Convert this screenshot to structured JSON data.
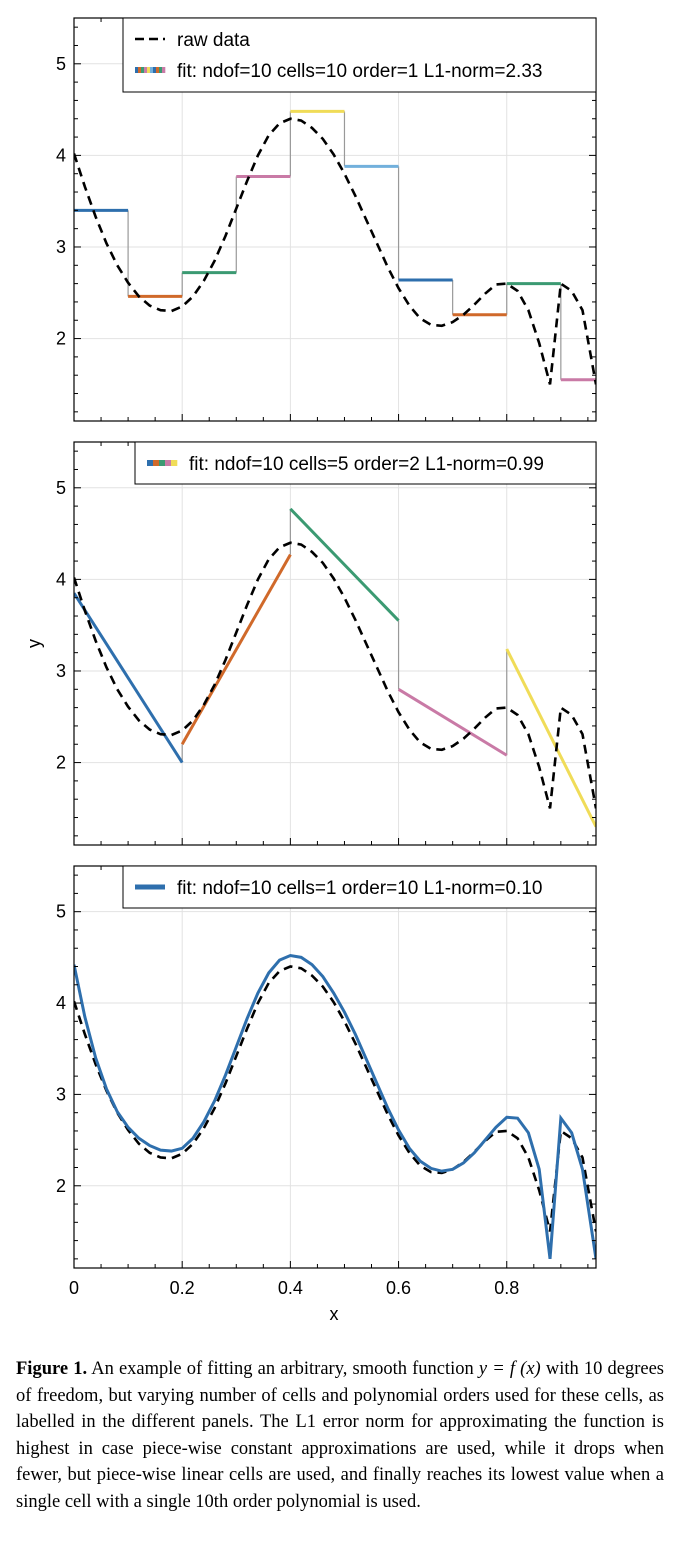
{
  "chart_data": [
    {
      "type": "line",
      "panel": "top",
      "xlim": [
        0,
        0.965
      ],
      "ylim": [
        1.1,
        5.5
      ],
      "yticks": [
        2,
        3,
        4,
        5
      ],
      "ytick_labels": [
        "2",
        "3",
        "4",
        "5"
      ],
      "xticks": [
        0.2,
        0.4,
        0.6,
        0.8
      ],
      "grid": true,
      "legend_position": "top-right",
      "legend": [
        "raw data",
        "fit: ndof=10 cells=10 order=1 L1-norm=2.33"
      ],
      "series": [
        {
          "name": "raw data",
          "style": "dashed",
          "color": "#000000",
          "x": [
            0,
            0.02,
            0.04,
            0.06,
            0.08,
            0.1,
            0.12,
            0.14,
            0.16,
            0.18,
            0.2,
            0.22,
            0.24,
            0.26,
            0.28,
            0.3,
            0.32,
            0.34,
            0.36,
            0.38,
            0.4,
            0.42,
            0.44,
            0.46,
            0.48,
            0.5,
            0.52,
            0.54,
            0.56,
            0.58,
            0.6,
            0.62,
            0.64,
            0.66,
            0.68,
            0.7,
            0.72,
            0.74,
            0.76,
            0.78,
            0.8,
            0.82,
            0.84,
            0.86,
            0.88,
            0.9,
            0.92,
            0.94,
            0.965
          ],
          "values": [
            4.02,
            3.66,
            3.33,
            3.04,
            2.8,
            2.61,
            2.46,
            2.36,
            2.31,
            2.3,
            2.35,
            2.46,
            2.63,
            2.85,
            3.12,
            3.42,
            3.72,
            4.0,
            4.22,
            4.35,
            4.4,
            4.38,
            4.3,
            4.18,
            4.01,
            3.8,
            3.56,
            3.3,
            3.04,
            2.78,
            2.55,
            2.36,
            2.22,
            2.15,
            2.14,
            2.18,
            2.26,
            2.37,
            2.49,
            2.59,
            2.6,
            2.52,
            2.31,
            1.95,
            1.5,
            2.6,
            2.52,
            2.31,
            1.5
          ]
        },
        {
          "name": "fit: ndof=10 cells=10 order=1 L1-norm=2.33",
          "kind": "piecewise-constant",
          "segments": [
            {
              "x": [
                0.0,
                0.1
              ],
              "y": 3.4,
              "color": "#2e6fad"
            },
            {
              "x": [
                0.1,
                0.2
              ],
              "y": 2.46,
              "color": "#d0692a"
            },
            {
              "x": [
                0.2,
                0.3
              ],
              "y": 2.72,
              "color": "#3b9a72"
            },
            {
              "x": [
                0.3,
                0.4
              ],
              "y": 3.77,
              "color": "#c97aa6"
            },
            {
              "x": [
                0.4,
                0.5
              ],
              "y": 4.48,
              "color": "#f0dc58"
            },
            {
              "x": [
                0.5,
                0.6
              ],
              "y": 3.88,
              "color": "#72b0dc"
            },
            {
              "x": [
                0.6,
                0.7
              ],
              "y": 2.64,
              "color": "#2e6fad"
            },
            {
              "x": [
                0.7,
                0.8
              ],
              "y": 2.26,
              "color": "#d0692a"
            },
            {
              "x": [
                0.8,
                0.9
              ],
              "y": 2.6,
              "color": "#3b9a72"
            },
            {
              "x": [
                0.9,
                0.965
              ],
              "y": 1.55,
              "color": "#c97aa6"
            }
          ]
        }
      ]
    },
    {
      "type": "line",
      "panel": "middle",
      "ylabel": "y",
      "xlim": [
        0,
        0.965
      ],
      "ylim": [
        1.1,
        5.5
      ],
      "yticks": [
        2,
        3,
        4,
        5
      ],
      "ytick_labels": [
        "2",
        "3",
        "4",
        "5"
      ],
      "xticks": [
        0.2,
        0.4,
        0.6,
        0.8
      ],
      "grid": true,
      "legend_position": "top-right",
      "legend": [
        "fit: ndof=10 cells=5 order=2 L1-norm=0.99"
      ],
      "series": [
        {
          "name": "raw data",
          "style": "dashed",
          "color": "#000000"
        },
        {
          "name": "fit: ndof=10 cells=5 order=2 L1-norm=0.99",
          "kind": "piecewise-linear",
          "segments": [
            {
              "x": [
                0.0,
                0.2
              ],
              "y": [
                3.85,
                2.0
              ],
              "color": "#2e6fad"
            },
            {
              "x": [
                0.2,
                0.4
              ],
              "y": [
                2.2,
                4.27
              ],
              "color": "#d0692a"
            },
            {
              "x": [
                0.4,
                0.6
              ],
              "y": [
                4.77,
                3.55
              ],
              "color": "#3b9a72"
            },
            {
              "x": [
                0.6,
                0.8
              ],
              "y": [
                2.8,
                2.08
              ],
              "color": "#c97aa6"
            },
            {
              "x": [
                0.8,
                0.965
              ],
              "y": [
                3.24,
                1.3
              ],
              "color": "#f0dc58"
            }
          ]
        }
      ]
    },
    {
      "type": "line",
      "panel": "bottom",
      "xlabel": "x",
      "xlim": [
        0,
        0.965
      ],
      "ylim": [
        1.1,
        5.5
      ],
      "yticks": [
        2,
        3,
        4,
        5
      ],
      "ytick_labels": [
        "2",
        "3",
        "4",
        "5"
      ],
      "xticks": [
        0,
        0.2,
        0.4,
        0.6,
        0.8
      ],
      "xtick_labels": [
        "0",
        "0.2",
        "0.4",
        "0.6",
        "0.8"
      ],
      "grid": true,
      "legend_position": "top-right",
      "legend": [
        "fit: ndof=10 cells=1 order=10 L1-norm=0.10"
      ],
      "series": [
        {
          "name": "raw data",
          "style": "dashed",
          "color": "#000000"
        },
        {
          "name": "fit: ndof=10 cells=1 order=10 L1-norm=0.10",
          "kind": "polynomial",
          "color": "#2e6fad",
          "x": [
            0,
            0.02,
            0.04,
            0.06,
            0.08,
            0.1,
            0.12,
            0.14,
            0.16,
            0.18,
            0.2,
            0.22,
            0.24,
            0.26,
            0.28,
            0.3,
            0.32,
            0.34,
            0.36,
            0.38,
            0.4,
            0.42,
            0.44,
            0.46,
            0.48,
            0.5,
            0.52,
            0.54,
            0.56,
            0.58,
            0.6,
            0.62,
            0.64,
            0.66,
            0.68,
            0.7,
            0.72,
            0.74,
            0.76,
            0.78,
            0.8,
            0.82,
            0.84,
            0.86,
            0.88,
            0.9,
            0.92,
            0.94,
            0.965
          ],
          "values": [
            4.42,
            3.85,
            3.4,
            3.06,
            2.81,
            2.64,
            2.52,
            2.44,
            2.39,
            2.38,
            2.41,
            2.52,
            2.7,
            2.93,
            3.21,
            3.52,
            3.83,
            4.11,
            4.33,
            4.47,
            4.52,
            4.5,
            4.42,
            4.29,
            4.11,
            3.9,
            3.66,
            3.39,
            3.12,
            2.85,
            2.61,
            2.41,
            2.27,
            2.19,
            2.16,
            2.18,
            2.25,
            2.36,
            2.5,
            2.64,
            2.75,
            2.74,
            2.58,
            2.18,
            1.2,
            2.74,
            2.58,
            2.18,
            1.2
          ]
        }
      ]
    }
  ],
  "raw_data_shared": {
    "x": [
      0,
      0.02,
      0.04,
      0.06,
      0.08,
      0.1,
      0.12,
      0.14,
      0.16,
      0.18,
      0.2,
      0.22,
      0.24,
      0.26,
      0.28,
      0.3,
      0.32,
      0.34,
      0.36,
      0.38,
      0.4,
      0.42,
      0.44,
      0.46,
      0.48,
      0.5,
      0.52,
      0.54,
      0.56,
      0.58,
      0.6,
      0.62,
      0.64,
      0.66,
      0.68,
      0.7,
      0.72,
      0.74,
      0.76,
      0.78,
      0.8,
      0.82,
      0.84,
      0.86,
      0.88,
      0.9,
      0.92,
      0.94,
      0.965
    ],
    "y": [
      4.02,
      3.66,
      3.33,
      3.04,
      2.8,
      2.61,
      2.46,
      2.36,
      2.31,
      2.3,
      2.35,
      2.46,
      2.63,
      2.85,
      3.12,
      3.42,
      3.72,
      4.0,
      4.22,
      4.35,
      4.4,
      4.38,
      4.3,
      4.18,
      4.01,
      3.8,
      3.56,
      3.3,
      3.04,
      2.78,
      2.55,
      2.36,
      2.22,
      2.15,
      2.14,
      2.18,
      2.26,
      2.37,
      2.49,
      2.59,
      2.6,
      2.52,
      2.31,
      1.95,
      1.5,
      2.6,
      2.52,
      2.31,
      1.5
    ]
  },
  "caption": {
    "label": "Figure 1.",
    "text_1": " An example of fitting an arbitrary, smooth function ",
    "math": "y = f (x)",
    "text_2": " with 10 degrees of freedom, but varying number of cells and polynomial orders used for these cells, as labelled in the different panels. The L1 error norm for approximating the function is highest in case piece-wise constant approximations are used, while it drops when fewer, but piece-wise linear cells are used, and finally reaches its lowest value when a single cell with a single 10th order polynomial is used."
  }
}
